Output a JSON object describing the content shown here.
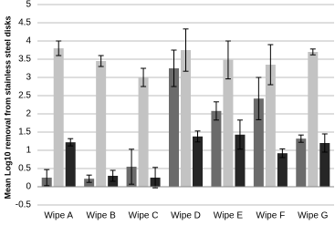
{
  "chart_data": {
    "type": "bar",
    "y_label": "Mean Log10 removal from stainless steel disks",
    "categories": [
      "Wipe A",
      "Wipe B",
      "Wipe C",
      "Wipe D",
      "Wipe E",
      "Wipe F",
      "Wipe G"
    ],
    "series": [
      {
        "color": "#6b6b6b",
        "values": [
          0.25,
          0.22,
          0.55,
          3.25,
          2.08,
          2.42,
          1.32
        ],
        "errors": [
          0.22,
          0.1,
          0.48,
          0.5,
          0.25,
          0.58,
          0.1
        ]
      },
      {
        "color": "#c3c3c3",
        "values": [
          3.8,
          3.45,
          3.0,
          3.75,
          3.48,
          3.35,
          3.7
        ],
        "errors": [
          0.2,
          0.15,
          0.25,
          0.58,
          0.52,
          0.55,
          0.08
        ]
      },
      {
        "color": "#262626",
        "values": [
          1.22,
          0.3,
          0.25,
          1.38,
          1.43,
          0.92,
          1.2
        ],
        "errors": [
          0.1,
          0.15,
          0.28,
          0.15,
          0.4,
          0.12,
          0.25
        ]
      }
    ],
    "ylim": [
      -0.5,
      5
    ],
    "yticks": [
      -0.5,
      0,
      0.5,
      1,
      1.5,
      2,
      2.5,
      3,
      3.5,
      4,
      4.5,
      5
    ],
    "grid": true
  }
}
